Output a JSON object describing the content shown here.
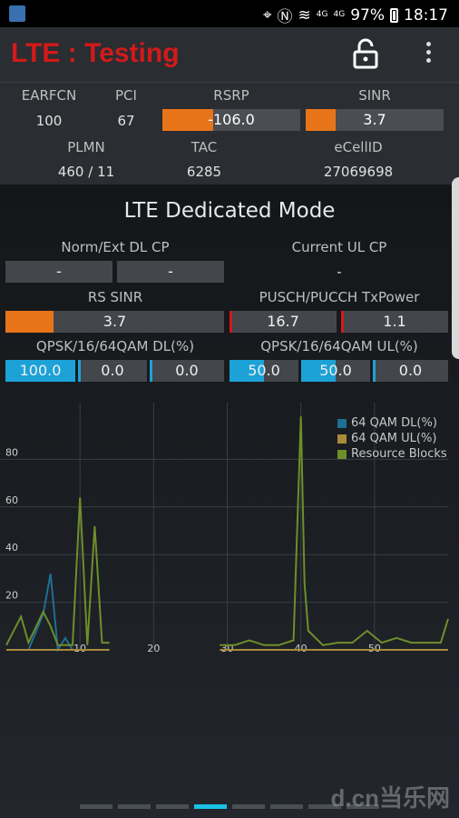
{
  "status_bar": {
    "battery": "97%",
    "time": "18:17",
    "net_small_1": "4G",
    "net_small_2": "4G"
  },
  "app_bar": {
    "title": "LTE : Testing"
  },
  "cell_info": {
    "earfcn_label": "EARFCN",
    "earfcn_value": "100",
    "pci_label": "PCI",
    "pci_value": "67",
    "rsrp_label": "RSRP",
    "rsrp_value": "-106.0",
    "rsrp_level": 0.37,
    "sinr_label": "SINR",
    "sinr_value": "3.7",
    "sinr_level": 0.22,
    "plmn_label": "PLMN",
    "plmn_value": "460 / 11",
    "tac_label": "TAC",
    "tac_value": "6285",
    "ecellid_label": "eCellID",
    "ecellid_value": "27069698"
  },
  "dedicated": {
    "heading": "LTE Dedicated Mode",
    "norm_ext_label": "Norm/Ext DL CP",
    "norm_ext_values": [
      "-",
      "-"
    ],
    "current_ul_label": "Current UL CP",
    "current_ul_value": "-",
    "rs_sinr_label": "RS SINR",
    "rs_sinr_value": "3.7",
    "rs_sinr_level": 0.22,
    "pusch_label": "PUSCH/PUCCH TxPower",
    "pusch_values": [
      "16.7",
      "1.1"
    ],
    "qam_dl_label": "QPSK/16/64QAM DL(%)",
    "qam_dl_values": [
      "100.0",
      "0.0",
      "0.0"
    ],
    "qam_dl_levels": [
      1.0,
      0.0,
      0.0
    ],
    "qam_ul_label": "QPSK/16/64QAM UL(%)",
    "qam_ul_values": [
      "50.0",
      "50.0",
      "0.0"
    ],
    "qam_ul_levels": [
      0.5,
      0.5,
      0.0
    ]
  },
  "chart_data": {
    "type": "line",
    "x_ticks": [
      "10",
      "20",
      "30",
      "40",
      "50"
    ],
    "y_ticks": [
      "20",
      "40",
      "60",
      "80"
    ],
    "xlim": [
      0,
      60
    ],
    "ylim": [
      0,
      100
    ],
    "series": [
      {
        "name": "64 QAM DL(%)",
        "color": "#1e6f94",
        "segments": [
          [
            [
              1,
              0
            ],
            [
              3,
              0
            ],
            [
              5,
              15
            ],
            [
              6,
              32
            ],
            [
              7,
              0
            ],
            [
              8,
              5
            ],
            [
              9,
              0
            ],
            [
              10,
              0
            ],
            [
              11,
              0
            ],
            [
              12,
              0
            ],
            [
              13,
              0
            ],
            [
              14,
              0
            ]
          ],
          [
            [
              29,
              0
            ],
            [
              31,
              0
            ],
            [
              33,
              0
            ],
            [
              35,
              0
            ],
            [
              37,
              0
            ],
            [
              39,
              0
            ],
            [
              41,
              0
            ],
            [
              43,
              0
            ],
            [
              45,
              0
            ],
            [
              47,
              0
            ],
            [
              49,
              0
            ],
            [
              51,
              0
            ],
            [
              53,
              0
            ],
            [
              55,
              0
            ],
            [
              57,
              0
            ],
            [
              59,
              0
            ],
            [
              60,
              0
            ]
          ]
        ]
      },
      {
        "name": "64 QAM UL(%)",
        "color": "#a88a3a",
        "segments": [
          [
            [
              0,
              0
            ],
            [
              14,
              0
            ]
          ],
          [
            [
              29,
              0
            ],
            [
              60,
              0
            ]
          ]
        ]
      },
      {
        "name": "Resource Blocks",
        "color": "#6e8e2a",
        "segments": [
          [
            [
              0,
              2
            ],
            [
              2,
              14
            ],
            [
              3,
              3
            ],
            [
              5,
              16
            ],
            [
              6,
              10
            ],
            [
              7,
              2
            ],
            [
              9,
              2
            ],
            [
              10,
              64
            ],
            [
              11,
              2
            ],
            [
              12,
              52
            ],
            [
              13,
              3
            ],
            [
              14,
              3
            ]
          ],
          [
            [
              29,
              2
            ],
            [
              31,
              2
            ],
            [
              33,
              4
            ],
            [
              35,
              2
            ],
            [
              37,
              2
            ],
            [
              39,
              4
            ],
            [
              40,
              98
            ],
            [
              40.5,
              28
            ],
            [
              41,
              8
            ],
            [
              43,
              2
            ],
            [
              45,
              3
            ],
            [
              47,
              3
            ],
            [
              49,
              8
            ],
            [
              51,
              3
            ],
            [
              53,
              5
            ],
            [
              55,
              3
            ],
            [
              57,
              3
            ],
            [
              59,
              3
            ],
            [
              60,
              13
            ]
          ]
        ]
      }
    ]
  },
  "pager": {
    "pages": 8,
    "active": 3
  },
  "watermark": "d.cn当乐网"
}
